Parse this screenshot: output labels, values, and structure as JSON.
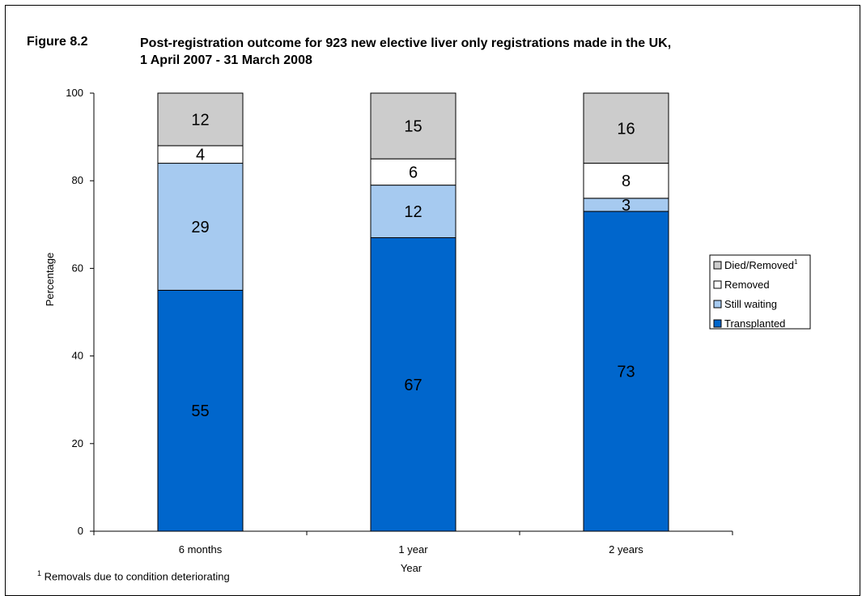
{
  "figure": {
    "label": "Figure 8.2",
    "title_line1": "Post-registration outcome for 923 new elective liver only registrations made in the UK,",
    "title_line2": "1 April 2007 - 31 March 2008"
  },
  "footnote": {
    "marker": "1",
    "text": "Removals due to condition deteriorating"
  },
  "chart_data": {
    "type": "bar",
    "stacked": true,
    "categories": [
      "6 months",
      "1 year",
      "2 years"
    ],
    "series": [
      {
        "name": "Transplanted",
        "values": [
          55,
          67,
          73
        ],
        "color": "#0066cc"
      },
      {
        "name": "Still waiting",
        "values": [
          29,
          12,
          3
        ],
        "color": "#a6caf0"
      },
      {
        "name": "Removed",
        "values": [
          4,
          6,
          8
        ],
        "color": "#ffffff"
      },
      {
        "name": "Died/Removed",
        "name_superscript": "1",
        "values": [
          12,
          15,
          16
        ],
        "color": "#cccccc"
      }
    ],
    "xlabel": "Year",
    "ylabel": "Percentage",
    "ylim": [
      0,
      100
    ],
    "yticks": [
      0,
      20,
      40,
      60,
      80,
      100
    ],
    "grid": false,
    "legend_position": "right",
    "legend_order": [
      "Died/Removed",
      "Removed",
      "Still waiting",
      "Transplanted"
    ]
  }
}
